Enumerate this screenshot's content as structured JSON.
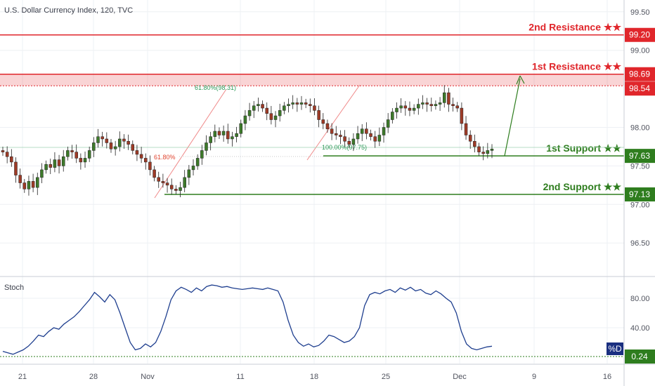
{
  "title": "U.S. Dollar Currency Index, 120, TVC",
  "stoch_label": "Stoch",
  "stoch_tag": "%D",
  "colors": {
    "resistance": "#e0262b",
    "support": "#2e7d1e",
    "up_candle": "#3d7a2a",
    "down_candle": "#9e3a26",
    "fib": "#f08a8a",
    "stoch_line": "#1f3f8f",
    "stoch_tag_bg": "#1a2f80"
  },
  "chart_data": [
    {
      "type": "candlestick",
      "title": "U.S. Dollar Currency Index, 120, TVC",
      "x_ticks": [
        "21",
        "28",
        "Nov",
        "11",
        "18",
        "25",
        "Dec",
        "9",
        "16"
      ],
      "y_ticks": [
        "99.50",
        "99.00",
        "98.00",
        "97.50",
        "97.00",
        "96.50"
      ],
      "ylim": [
        96.1,
        99.75
      ],
      "levels": [
        {
          "name": "2nd Resistance ★★",
          "value": "99.20",
          "color": "resistance"
        },
        {
          "name": "1st Resistance ★★",
          "value": "98.69",
          "color": "resistance"
        },
        {
          "name": "1st Support ★★",
          "value": "97.63",
          "color": "support"
        },
        {
          "name": "2nd Support ★★",
          "value": "97.13",
          "color": "support"
        }
      ],
      "extra_price_tag": "98.54",
      "fib_labels": [
        "61.80%(98.31)",
        "61.80%",
        "100.00%(97.75)"
      ],
      "price_path": [
        97.68,
        97.62,
        97.55,
        97.38,
        97.28,
        97.2,
        97.3,
        97.22,
        97.35,
        97.45,
        97.52,
        97.48,
        97.58,
        97.5,
        97.62,
        97.7,
        97.68,
        97.6,
        97.55,
        97.6,
        97.7,
        97.8,
        97.88,
        97.85,
        97.8,
        97.72,
        97.75,
        97.85,
        97.82,
        97.78,
        97.7,
        97.65,
        97.6,
        97.55,
        97.45,
        97.35,
        97.3,
        97.28,
        97.25,
        97.2,
        97.18,
        97.22,
        97.35,
        97.45,
        97.5,
        97.6,
        97.7,
        97.8,
        97.88,
        97.95,
        97.9,
        97.95,
        97.85,
        97.88,
        97.92,
        98.05,
        98.15,
        98.22,
        98.28,
        98.3,
        98.25,
        98.18,
        98.1,
        98.15,
        98.22,
        98.28,
        98.3,
        98.32,
        98.3,
        98.32,
        98.3,
        98.28,
        98.22,
        98.1,
        98.05,
        97.98,
        97.92,
        97.9,
        97.88,
        97.82,
        97.78,
        97.85,
        97.92,
        97.98,
        97.92,
        97.88,
        97.82,
        97.9,
        98.0,
        98.1,
        98.2,
        98.25,
        98.28,
        98.25,
        98.22,
        98.25,
        98.3,
        98.32,
        98.3,
        98.28,
        98.3,
        98.32,
        98.45,
        98.3,
        98.28,
        98.25,
        98.05,
        97.9,
        97.82,
        97.75,
        97.68,
        97.66,
        97.7,
        97.72
      ]
    },
    {
      "type": "line",
      "title": "Stoch",
      "series": [
        {
          "name": "%D",
          "values": [
            8,
            6,
            4,
            7,
            10,
            15,
            22,
            30,
            28,
            35,
            40,
            38,
            45,
            50,
            55,
            62,
            70,
            78,
            88,
            82,
            75,
            85,
            78,
            60,
            40,
            20,
            10,
            12,
            18,
            14,
            20,
            35,
            55,
            78,
            90,
            95,
            92,
            88,
            94,
            90,
            96,
            98,
            97,
            95,
            96,
            94,
            93,
            92,
            93,
            94,
            93,
            92,
            94,
            92,
            90,
            75,
            50,
            30,
            20,
            15,
            18,
            14,
            16,
            22,
            30,
            28,
            24,
            20,
            22,
            28,
            40,
            70,
            85,
            88,
            86,
            90,
            92,
            88,
            94,
            91,
            95,
            90,
            92,
            87,
            85,
            90,
            86,
            80,
            75,
            60,
            35,
            18,
            12,
            10,
            12,
            14,
            15
          ]
        }
      ],
      "y_ticks": [
        "80.00",
        "40.00"
      ],
      "ylim": [
        0,
        110
      ],
      "current_value": "0.24"
    }
  ]
}
